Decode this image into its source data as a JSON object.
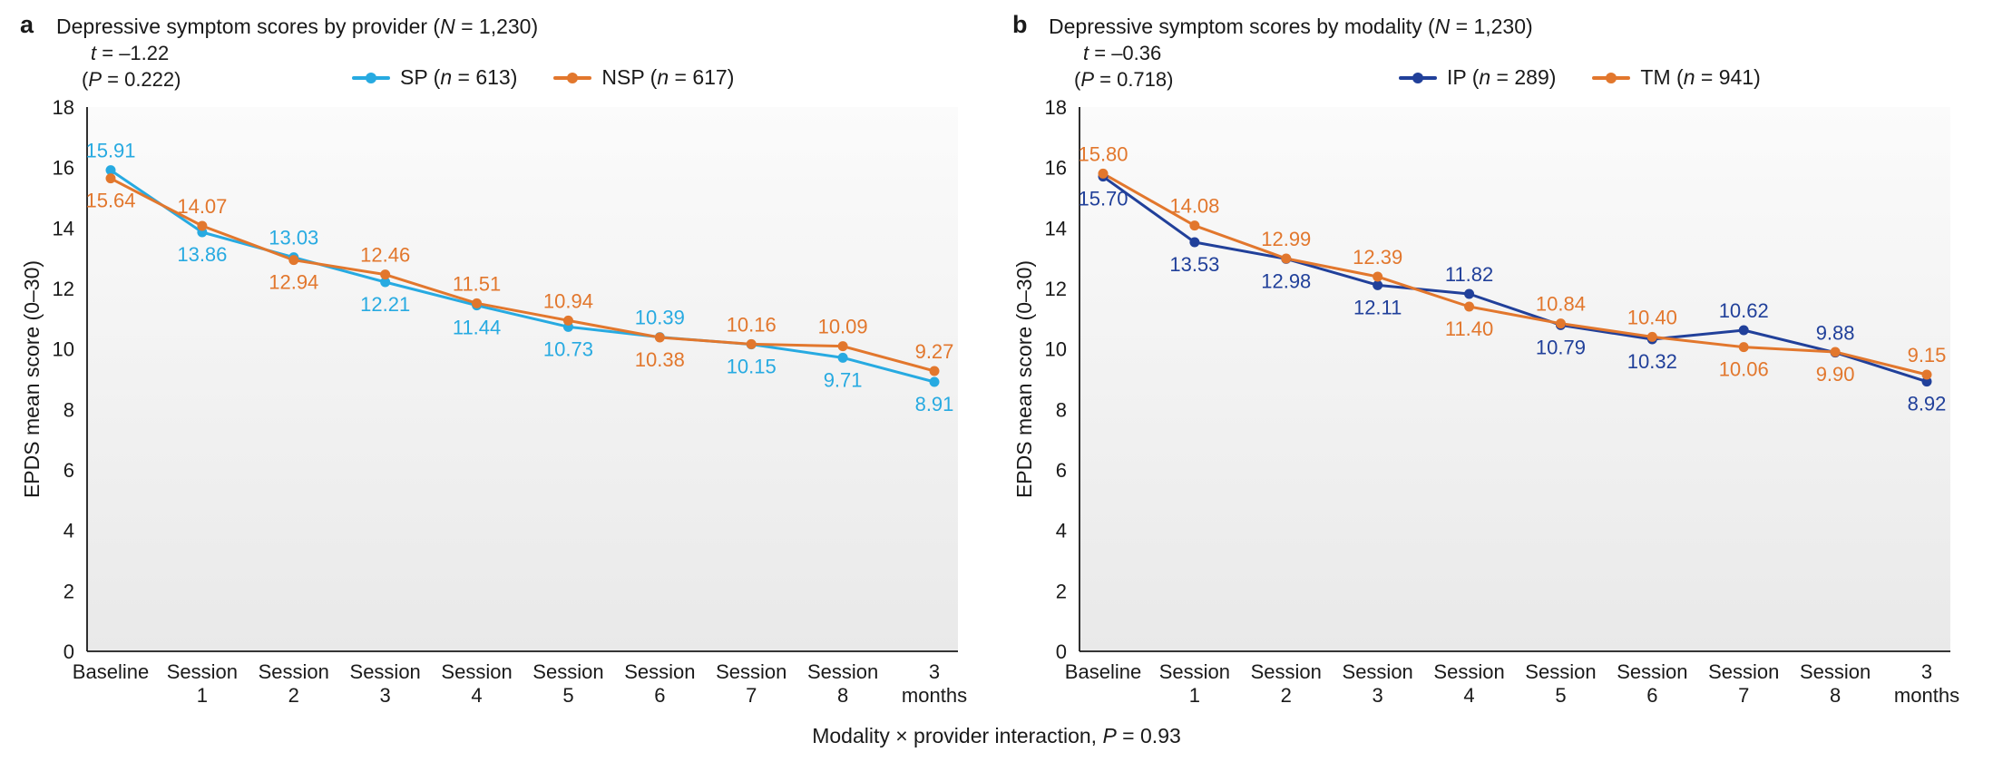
{
  "figure": {
    "footer": "Modality × provider interaction, P = 0.93",
    "footer_parts": {
      "prefix": "Modality × provider interaction, ",
      "italic": "P",
      "suffix": " = 0.93"
    }
  },
  "chart_data": [
    {
      "type": "line",
      "panel": "a",
      "title": "Depressive symptom scores by provider (N = 1,230)",
      "title_parts": {
        "prefix": "Depressive symptom scores by provider (",
        "italic": "N",
        "suffix": " = 1,230)"
      },
      "stats": {
        "t": "–1.22",
        "P": "0.222"
      },
      "stats_parts": {
        "l1_italic": "t",
        "l1_rest": " = –1.22",
        "l2_pre": "(",
        "l2_italic": "P",
        "l2_rest": " = 0.222)"
      },
      "xlabel": "",
      "ylabel": "EPDS mean score (0–30)",
      "ylim": [
        0,
        18
      ],
      "ytick_step": 2,
      "grid": false,
      "legend_position": "top-right",
      "categories": [
        "Baseline",
        "Session 1",
        "Session 2",
        "Session 3",
        "Session 4",
        "Session 5",
        "Session 6",
        "Session 7",
        "Session 8",
        "3 months"
      ],
      "series": [
        {
          "name": "SP (n = 613)",
          "legend_parts": {
            "prefix": "SP (",
            "italic": "n",
            "suffix": " = 613)"
          },
          "color": "#27AAE1",
          "values": [
            15.91,
            13.86,
            13.03,
            12.21,
            11.44,
            10.73,
            10.39,
            10.15,
            9.71,
            8.91
          ],
          "label_side": [
            "above",
            "below",
            "above",
            "below",
            "below",
            "below",
            "above",
            "below",
            "below",
            "below"
          ]
        },
        {
          "name": "NSP (n = 617)",
          "legend_parts": {
            "prefix": "NSP (",
            "italic": "n",
            "suffix": " = 617)"
          },
          "color": "#E2772D",
          "values": [
            15.64,
            14.07,
            12.94,
            12.46,
            11.51,
            10.94,
            10.38,
            10.16,
            10.09,
            9.27
          ],
          "label_side": [
            "below",
            "above",
            "below",
            "above",
            "above",
            "above",
            "below",
            "above",
            "above",
            "above"
          ]
        }
      ]
    },
    {
      "type": "line",
      "panel": "b",
      "title": "Depressive symptom scores by modality (N = 1,230)",
      "title_parts": {
        "prefix": "Depressive symptom scores by modality (",
        "italic": "N",
        "suffix": " = 1,230)"
      },
      "stats": {
        "t": "–0.36",
        "P": "0.718"
      },
      "stats_parts": {
        "l1_italic": "t",
        "l1_rest": " = –0.36",
        "l2_pre": "(",
        "l2_italic": "P",
        "l2_rest": " = 0.718)"
      },
      "xlabel": "",
      "ylabel": "EPDS mean score (0–30)",
      "ylim": [
        0,
        18
      ],
      "ytick_step": 2,
      "grid": false,
      "legend_position": "top-right",
      "categories": [
        "Baseline",
        "Session 1",
        "Session 2",
        "Session 3",
        "Session 4",
        "Session 5",
        "Session 6",
        "Session 7",
        "Session 8",
        "3 months"
      ],
      "series": [
        {
          "name": "IP (n = 289)",
          "legend_parts": {
            "prefix": "IP (",
            "italic": "n",
            "suffix": " = 289)"
          },
          "color": "#21409A",
          "values": [
            15.7,
            13.53,
            12.98,
            12.11,
            11.82,
            10.79,
            10.32,
            10.62,
            9.88,
            8.92
          ],
          "label_side": [
            "below",
            "below",
            "below",
            "below",
            "above",
            "below",
            "below",
            "above",
            "above",
            "below"
          ]
        },
        {
          "name": "TM (n = 941)",
          "legend_parts": {
            "prefix": "TM (",
            "italic": "n",
            "suffix": " = 941)"
          },
          "color": "#E2772D",
          "values": [
            15.8,
            14.08,
            12.99,
            12.39,
            11.4,
            10.84,
            10.4,
            10.06,
            9.9,
            9.15
          ],
          "label_side": [
            "above",
            "above",
            "above",
            "above",
            "below",
            "above",
            "above",
            "below",
            "below",
            "above"
          ]
        }
      ]
    }
  ]
}
